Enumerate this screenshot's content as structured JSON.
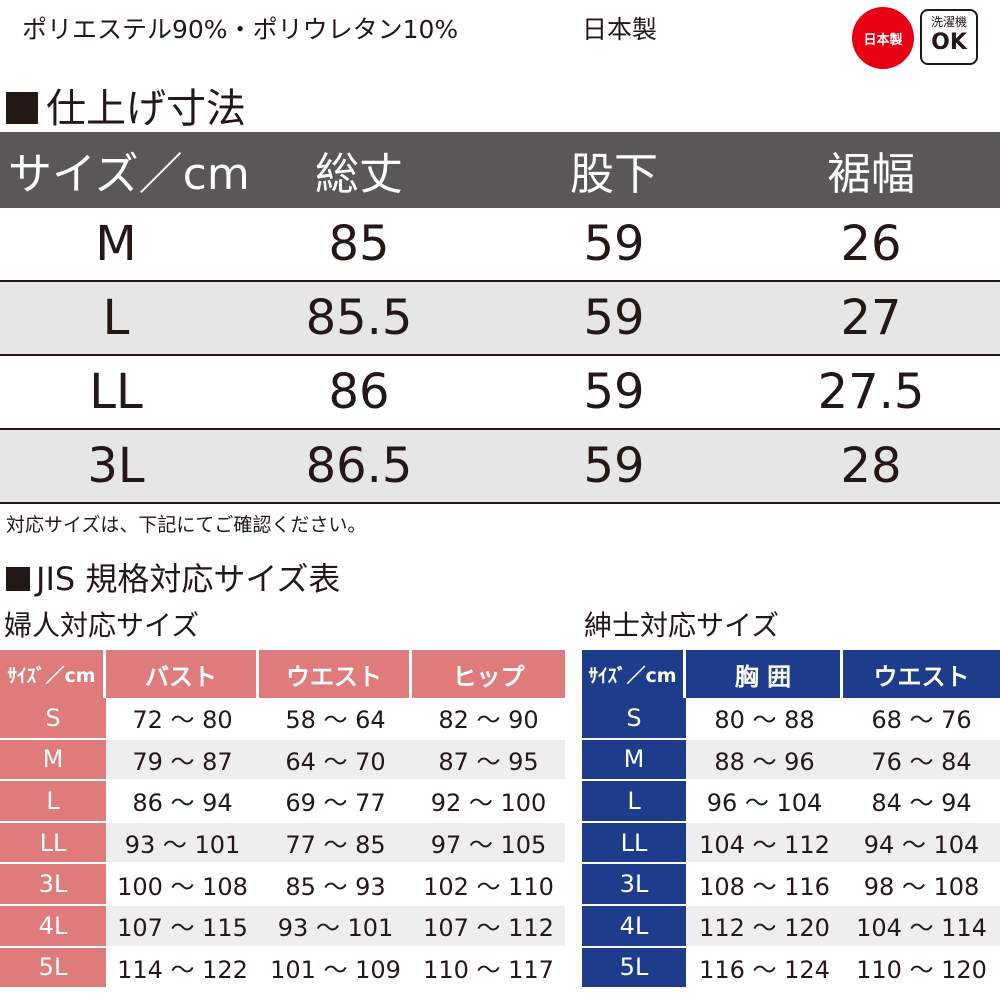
{
  "header": {
    "material": "ポリエステル90%・ポリウレタン10%",
    "made_in": "日本製",
    "badge_japan": "日本製",
    "badge_wash_top": "洗濯機",
    "badge_wash_ok": "OK",
    "colors": {
      "badge_japan": "#e60012"
    }
  },
  "finished_dimensions": {
    "title": "仕上げ寸法",
    "header_color": "#595757",
    "columns": [
      "サイズ／cm",
      "総丈",
      "股下",
      "裾幅"
    ],
    "rows": [
      [
        "M",
        "85",
        "59",
        "26"
      ],
      [
        "L",
        "85.5",
        "59",
        "27"
      ],
      [
        "LL",
        "86",
        "59",
        "27.5"
      ],
      [
        "3L",
        "86.5",
        "59",
        "28"
      ]
    ]
  },
  "note": "対応サイズは、下記にてご確認ください。",
  "jis": {
    "title": "JIS 規格対応サイズ表",
    "women": {
      "label": "婦人対応サイズ",
      "color": "#e07b7b",
      "columns": [
        "ｻｲｽﾞ／cm",
        "バスト",
        "ウエスト",
        "ヒップ"
      ],
      "rows": [
        [
          "S",
          "72 〜 80",
          "58 〜 64",
          "82 〜 90"
        ],
        [
          "M",
          "79 〜 87",
          "64 〜 70",
          "87 〜 95"
        ],
        [
          "L",
          "86 〜 94",
          "69 〜 77",
          "92 〜 100"
        ],
        [
          "LL",
          "93 〜 101",
          "77 〜 85",
          "97 〜 105"
        ],
        [
          "3L",
          "100 〜 108",
          "85 〜 93",
          "102 〜 110"
        ],
        [
          "4L",
          "107 〜 115",
          "93 〜 101",
          "107 〜 112"
        ],
        [
          "5L",
          "114 〜 122",
          "101 〜 109",
          "110 〜 117"
        ]
      ]
    },
    "men": {
      "label": "紳士対応サイズ",
      "color": "#1d3c8c",
      "columns": [
        "ｻｲｽﾞ／cm",
        "胸 囲",
        "ウエスト"
      ],
      "rows": [
        [
          "S",
          "80 〜 88",
          "68 〜 76"
        ],
        [
          "M",
          "88 〜 96",
          "76 〜 84"
        ],
        [
          "L",
          "96 〜 104",
          "84 〜 94"
        ],
        [
          "LL",
          "104 〜 112",
          "94 〜 104"
        ],
        [
          "3L",
          "108 〜 116",
          "98 〜 108"
        ],
        [
          "4L",
          "112 〜 120",
          "104 〜 114"
        ],
        [
          "5L",
          "116 〜 124",
          "110 〜 120"
        ]
      ]
    }
  }
}
